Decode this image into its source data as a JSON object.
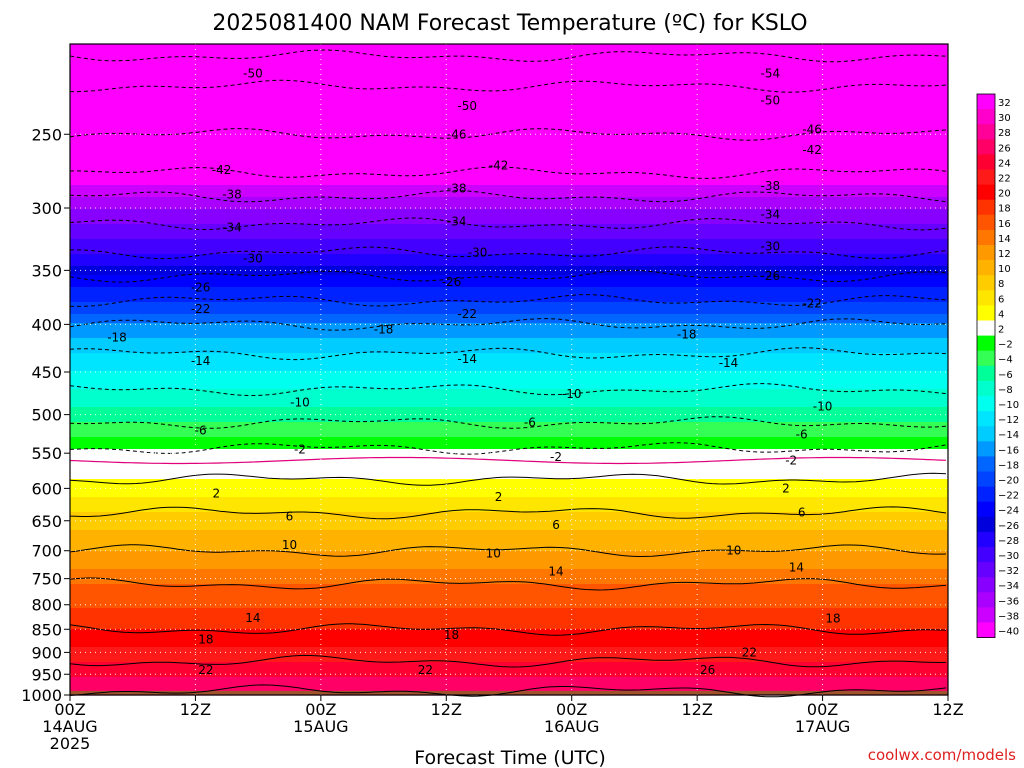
{
  "chart_data": {
    "type": "heatmap",
    "title": "2025081400 NAM Forecast Temperature (ºC) for KSLO",
    "xlabel": "Forecast Time (UTC)",
    "ylabel": "",
    "credit": "coolwx.com/models",
    "x_hours_range": [
      0,
      84
    ],
    "x_ticks": [
      {
        "hour": 0,
        "lines": [
          "00Z",
          "14AUG",
          "2025"
        ]
      },
      {
        "hour": 12,
        "lines": [
          "12Z"
        ]
      },
      {
        "hour": 24,
        "lines": [
          "00Z",
          "15AUG"
        ]
      },
      {
        "hour": 36,
        "lines": [
          "12Z"
        ]
      },
      {
        "hour": 48,
        "lines": [
          "00Z",
          "16AUG"
        ]
      },
      {
        "hour": 60,
        "lines": [
          "12Z"
        ]
      },
      {
        "hour": 72,
        "lines": [
          "00Z",
          "17AUG"
        ]
      },
      {
        "hour": 84,
        "lines": [
          "12Z"
        ]
      }
    ],
    "y_ticks": [
      250,
      300,
      350,
      400,
      450,
      500,
      550,
      600,
      650,
      700,
      750,
      800,
      850,
      900,
      950,
      1000
    ],
    "ylim": [
      1000,
      200
    ],
    "y_scale": "log",
    "surface_pressure_hpa": 990,
    "temperature_profile": [
      {
        "p": 200,
        "t": -56
      },
      {
        "p": 215,
        "t": -51
      },
      {
        "p": 250,
        "t": -46
      },
      {
        "p": 275,
        "t": -42
      },
      {
        "p": 300,
        "t": -36
      },
      {
        "p": 330,
        "t": -31
      },
      {
        "p": 360,
        "t": -25
      },
      {
        "p": 400,
        "t": -18
      },
      {
        "p": 430,
        "t": -14
      },
      {
        "p": 470,
        "t": -10
      },
      {
        "p": 510,
        "t": -6
      },
      {
        "p": 560,
        "t": 0
      },
      {
        "p": 600,
        "t": 3
      },
      {
        "p": 650,
        "t": 7
      },
      {
        "p": 700,
        "t": 10
      },
      {
        "p": 760,
        "t": 14
      },
      {
        "p": 850,
        "t": 18
      },
      {
        "p": 920,
        "t": 22
      },
      {
        "p": 990,
        "t": 26
      }
    ],
    "contour_labels": [
      {
        "value": "-50",
        "hour": 17.5,
        "p": 215
      },
      {
        "value": "-50",
        "hour": 38,
        "p": 233
      },
      {
        "value": "-50",
        "hour": 67,
        "p": 230
      },
      {
        "value": "-54",
        "hour": 67,
        "p": 215
      },
      {
        "value": "-46",
        "hour": 37,
        "p": 250
      },
      {
        "value": "-46",
        "hour": 71,
        "p": 247
      },
      {
        "value": "-42",
        "hour": 14.5,
        "p": 273
      },
      {
        "value": "-42",
        "hour": 41,
        "p": 270
      },
      {
        "value": "-42",
        "hour": 71,
        "p": 260
      },
      {
        "value": "-38",
        "hour": 15.5,
        "p": 290
      },
      {
        "value": "-38",
        "hour": 37,
        "p": 286
      },
      {
        "value": "-38",
        "hour": 67,
        "p": 284
      },
      {
        "value": "-34",
        "hour": 15.5,
        "p": 315
      },
      {
        "value": "-34",
        "hour": 37,
        "p": 310
      },
      {
        "value": "-34",
        "hour": 67,
        "p": 305
      },
      {
        "value": "-30",
        "hour": 17.5,
        "p": 340
      },
      {
        "value": "-30",
        "hour": 39,
        "p": 335
      },
      {
        "value": "-30",
        "hour": 67,
        "p": 330
      },
      {
        "value": "-26",
        "hour": 12.5,
        "p": 365
      },
      {
        "value": "-26",
        "hour": 36.5,
        "p": 360
      },
      {
        "value": "-26",
        "hour": 67,
        "p": 355
      },
      {
        "value": "-22",
        "hour": 12.5,
        "p": 385
      },
      {
        "value": "-22",
        "hour": 38,
        "p": 390
      },
      {
        "value": "-22",
        "hour": 71,
        "p": 380
      },
      {
        "value": "-18",
        "hour": 4.5,
        "p": 413
      },
      {
        "value": "-18",
        "hour": 30,
        "p": 405
      },
      {
        "value": "-18",
        "hour": 59,
        "p": 410
      },
      {
        "value": "-14",
        "hour": 12.5,
        "p": 438
      },
      {
        "value": "-14",
        "hour": 38,
        "p": 436
      },
      {
        "value": "-14",
        "hour": 63,
        "p": 440
      },
      {
        "value": "-10",
        "hour": 22,
        "p": 485
      },
      {
        "value": "-10",
        "hour": 48,
        "p": 475
      },
      {
        "value": "-10",
        "hour": 72,
        "p": 490
      },
      {
        "value": "-6",
        "hour": 12.5,
        "p": 520
      },
      {
        "value": "-6",
        "hour": 44,
        "p": 510
      },
      {
        "value": "-6",
        "hour": 70,
        "p": 525
      },
      {
        "value": "-2",
        "hour": 22,
        "p": 545
      },
      {
        "value": "-2",
        "hour": 46.5,
        "p": 555
      },
      {
        "value": "-2",
        "hour": 69,
        "p": 560
      },
      {
        "value": "2",
        "hour": 14,
        "p": 608
      },
      {
        "value": "2",
        "hour": 41,
        "p": 613
      },
      {
        "value": "2",
        "hour": 68.5,
        "p": 600
      },
      {
        "value": "6",
        "hour": 21,
        "p": 643
      },
      {
        "value": "6",
        "hour": 46.5,
        "p": 657
      },
      {
        "value": "6",
        "hour": 70,
        "p": 637
      },
      {
        "value": "10",
        "hour": 21,
        "p": 690
      },
      {
        "value": "10",
        "hour": 40.5,
        "p": 705
      },
      {
        "value": "10",
        "hour": 63.5,
        "p": 700
      },
      {
        "value": "14",
        "hour": 17.5,
        "p": 827
      },
      {
        "value": "14",
        "hour": 46.5,
        "p": 737
      },
      {
        "value": "14",
        "hour": 69.5,
        "p": 730
      },
      {
        "value": "18",
        "hour": 13,
        "p": 872
      },
      {
        "value": "18",
        "hour": 36.5,
        "p": 862
      },
      {
        "value": "18",
        "hour": 73,
        "p": 828
      },
      {
        "value": "22",
        "hour": 13,
        "p": 940
      },
      {
        "value": "22",
        "hour": 34,
        "p": 940
      },
      {
        "value": "22",
        "hour": 65,
        "p": 900
      },
      {
        "value": "26",
        "hour": 61,
        "p": 940
      }
    ],
    "colorbar": {
      "labels": [
        "32",
        "30",
        "28",
        "26",
        "24",
        "22",
        "20",
        "18",
        "16",
        "14",
        "12",
        "10",
        "8",
        "6",
        "4",
        "2",
        "−2",
        "−4",
        "−6",
        "−8",
        "−10",
        "−12",
        "−14",
        "−16",
        "−18",
        "−20",
        "−22",
        "−24",
        "−26",
        "−28",
        "−30",
        "−32",
        "−34",
        "−36",
        "−38",
        "−40"
      ],
      "colors": [
        "#ff00ff",
        "#ff00cc",
        "#ff0099",
        "#ff0066",
        "#ff0033",
        "#ff1a1a",
        "#ff0000",
        "#ff3300",
        "#ff5500",
        "#ff7700",
        "#ff9900",
        "#ffb300",
        "#ffcc00",
        "#ffe600",
        "#ffff00",
        "#ffffff",
        "#00ff00",
        "#33ff55",
        "#00ff99",
        "#00ffcc",
        "#00ffee",
        "#00e5ff",
        "#00ccff",
        "#0099ff",
        "#0066ff",
        "#0044ff",
        "#0022ff",
        "#0000ff",
        "#0000dd",
        "#2200ff",
        "#4400ff",
        "#6600ff",
        "#8800ff",
        "#aa00ff",
        "#cc00ff",
        "#ff00ff"
      ]
    }
  }
}
